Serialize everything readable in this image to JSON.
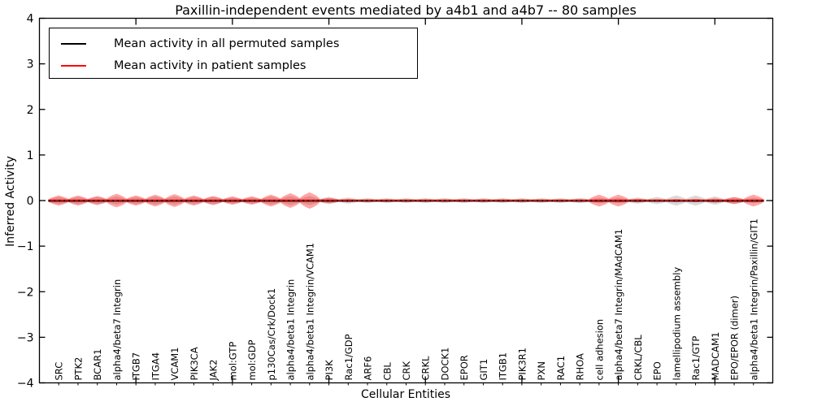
{
  "title": "Paxillin-independent events mediated by a4b1 and a4b7 -- 80 samples",
  "legend": {
    "items": [
      {
        "label": "Mean activity in all permuted samples",
        "color": "#000000"
      },
      {
        "label": "Mean activity in patient samples",
        "color": "#ff0000"
      }
    ]
  },
  "chart_data": {
    "type": "violin",
    "title": "Paxillin-independent events mediated by a4b1 and a4b7 -- 80 samples",
    "xlabel": "Cellular Entities",
    "ylabel": "Inferred Activity",
    "ylim": [
      -4,
      4
    ],
    "yticks": [
      4,
      3,
      2,
      1,
      0,
      -1,
      -2,
      -3,
      -4
    ],
    "x_major_ticks_at_positions": [
      5,
      10,
      15,
      20,
      25,
      30,
      35
    ],
    "grid": false,
    "legend_position": "upper left",
    "zero_line_style": "dotted",
    "categories": [
      "SRC",
      "PTK2",
      "BCAR1",
      "alpha4/beta7 Integrin",
      "ITGB7",
      "ITGA4",
      "VCAM1",
      "PIK3CA",
      "JAK2",
      "mol:GTP",
      "mol:GDP",
      "p130Cas/Crk/Dock1",
      "alpha4/beta1 Integrin",
      "alpha4/beta1 Integrin/VCAM1",
      "PI3K",
      "Rac1/GDP",
      "ARF6",
      "CBL",
      "CRK",
      "CRKL",
      "DOCK1",
      "EPOR",
      "GIT1",
      "ITGB1",
      "PIK3R1",
      "PXN",
      "RAC1",
      "RHOA",
      "cell adhesion",
      "alpha4/beta7 Integrin/MAdCAM1",
      "CRKL/CBL",
      "EPO",
      "lamellipodium assembly",
      "Rac1/GTP",
      "MADCAM1",
      "EPO/EPOR (dimer)",
      "alpha4/beta1 Integrin/Paxillin/GIT1"
    ],
    "series": [
      {
        "name": "Mean activity in all permuted samples",
        "line_color": "#000000",
        "violin_fill": "#808080",
        "violin_alpha": 0.3,
        "mean_values": [
          0,
          0,
          0,
          0,
          0,
          0,
          0,
          0,
          0,
          0,
          0,
          0,
          0,
          0,
          0,
          0,
          0,
          0,
          0,
          0,
          0,
          0,
          0,
          0,
          0,
          0,
          0,
          0,
          0,
          0,
          0,
          0,
          0,
          0,
          0,
          0,
          0
        ],
        "violin_halfheights": [
          0.08,
          0.08,
          0.08,
          0.09,
          0.08,
          0.09,
          0.09,
          0.08,
          0.08,
          0.07,
          0.07,
          0.09,
          0.1,
          0.1,
          0.08,
          0.07,
          0.055,
          0.055,
          0.055,
          0.055,
          0.055,
          0.055,
          0.055,
          0.055,
          0.055,
          0.055,
          0.055,
          0.06,
          0.065,
          0.065,
          0.07,
          0.08,
          0.11,
          0.11,
          0.09,
          0.07,
          0.065
        ]
      },
      {
        "name": "Mean activity in patient samples",
        "line_color": "#ff0000",
        "violin_fill": "#ff0000",
        "violin_alpha": 0.35,
        "mean_values": [
          0,
          0,
          0,
          0,
          0,
          0,
          0,
          0,
          0,
          0,
          0,
          0,
          0,
          0,
          0,
          0,
          0,
          0,
          0,
          0,
          0,
          0,
          0,
          0,
          0,
          0,
          0,
          0,
          0,
          0,
          0,
          0,
          0,
          0,
          0,
          0,
          0
        ],
        "violin_halfheights": [
          0.11,
          0.11,
          0.1,
          0.15,
          0.11,
          0.13,
          0.14,
          0.11,
          0.1,
          0.09,
          0.09,
          0.13,
          0.16,
          0.18,
          0.06,
          0.035,
          0.025,
          0.025,
          0.025,
          0.025,
          0.025,
          0.025,
          0.025,
          0.025,
          0.025,
          0.025,
          0.025,
          0.03,
          0.13,
          0.13,
          0.04,
          0.03,
          0.035,
          0.04,
          0.05,
          0.08,
          0.13
        ]
      }
    ]
  }
}
